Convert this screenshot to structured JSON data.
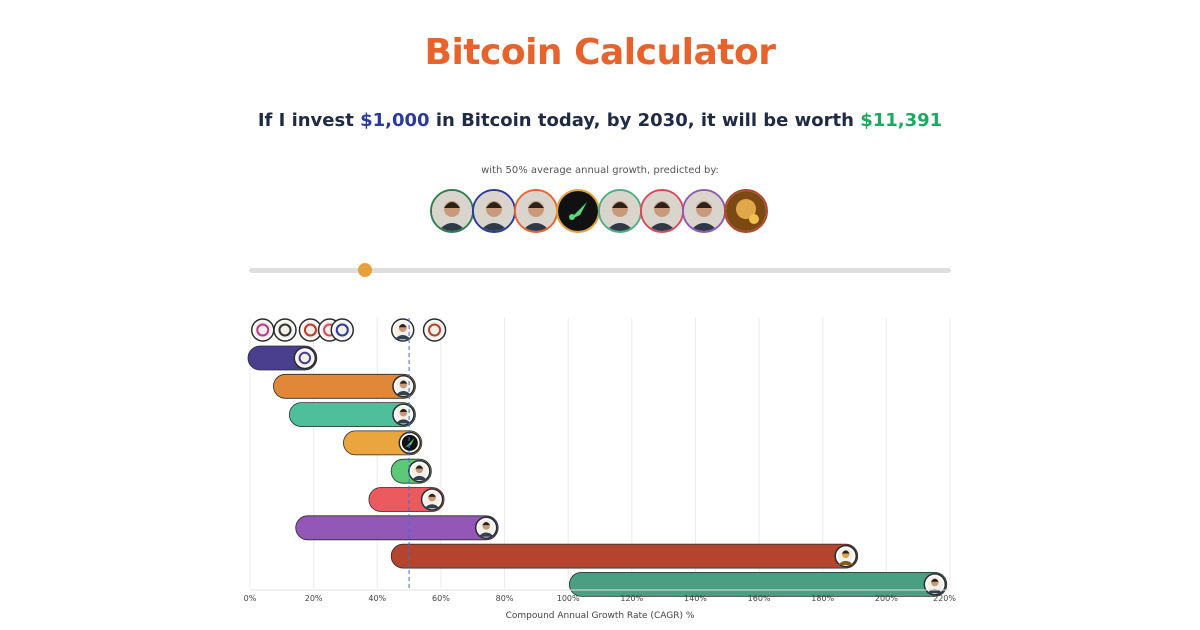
{
  "title": "Bitcoin Calculator",
  "headline": {
    "prefix": "If I invest ",
    "amount": "$1,000",
    "middle": " in Bitcoin today, by 2030, it will be worth ",
    "worth": "$11,391"
  },
  "subtitle": "with 50% average annual growth, predicted by:",
  "predictor_avatars": [
    {
      "icon": "woman-portrait-icon",
      "color": "#2e7d4f"
    },
    {
      "icon": "man-glasses-portrait-icon",
      "color": "#2a3a9e"
    },
    {
      "icon": "bearded-man-portrait-icon",
      "color": "#e8632c"
    },
    {
      "icon": "rocket-icon",
      "color": "#e8a03c"
    },
    {
      "icon": "older-man-portrait-icon",
      "color": "#4caf82"
    },
    {
      "icon": "man-suit-portrait-icon",
      "color": "#e0455a"
    },
    {
      "icon": "woman-glasses-portrait-icon",
      "color": "#8e5bb5"
    },
    {
      "icon": "golden-face-icon",
      "color": "#b5442f"
    }
  ],
  "slider": {
    "value": 50,
    "min": 0,
    "max": 220
  },
  "chart_data": {
    "type": "bar",
    "variant": "range",
    "xlabel": "Compound Annual Growth Rate (CAGR) %",
    "xlim": [
      0,
      220
    ],
    "ticks": [
      "0%",
      "20%",
      "40%",
      "60%",
      "80%",
      "100%",
      "120%",
      "140%",
      "160%",
      "180%",
      "200%",
      "220%"
    ],
    "tick_values": [
      0,
      20,
      40,
      60,
      80,
      100,
      120,
      140,
      160,
      180,
      200,
      220
    ],
    "marker_value": 50,
    "marker_style": "dashed",
    "point_markers": [
      {
        "value": 4,
        "color": "#c2388a",
        "icon": "bird-logo-icon"
      },
      {
        "value": 11,
        "color": "#333333",
        "icon": "b-letter-logo-icon"
      },
      {
        "value": 19,
        "color": "#c0392b",
        "icon": "bank-logo-icon"
      },
      {
        "value": 25,
        "color": "#e0455a",
        "icon": "c-logo-icon"
      },
      {
        "value": 29,
        "color": "#2a3a9e",
        "icon": "swirl-logo-icon"
      },
      {
        "value": 48,
        "color": "#e8632c",
        "icon": "man-portrait-icon"
      },
      {
        "value": 58,
        "color": "#b5442f",
        "icon": "avatar-logo-icon"
      }
    ],
    "series": [
      {
        "min": 0,
        "max": 21,
        "color": "#4a3f8f",
        "icon": "fund-logo-icon"
      },
      {
        "min": 8,
        "max": 52,
        "color": "#e08738",
        "icon": "man-glasses-portrait-icon"
      },
      {
        "min": 13,
        "max": 52,
        "color": "#4fbf9b",
        "icon": "bearded-man-portrait-icon"
      },
      {
        "min": 30,
        "max": 54,
        "color": "#eaa53f",
        "icon": "rocket-icon"
      },
      {
        "min": 45,
        "max": 57,
        "color": "#5cc977",
        "icon": "older-man-portrait-icon"
      },
      {
        "min": 38,
        "max": 61,
        "color": "#ea5a5f",
        "icon": "man-suit-portrait-icon"
      },
      {
        "min": 15,
        "max": 78,
        "color": "#9257b7",
        "icon": "woman-glasses-portrait-icon"
      },
      {
        "min": 45,
        "max": 191,
        "color": "#b5442f",
        "icon": "golden-face-icon"
      },
      {
        "min": 101,
        "max": 219,
        "color": "#4a9e82",
        "icon": "man-portrait-icon"
      }
    ]
  }
}
